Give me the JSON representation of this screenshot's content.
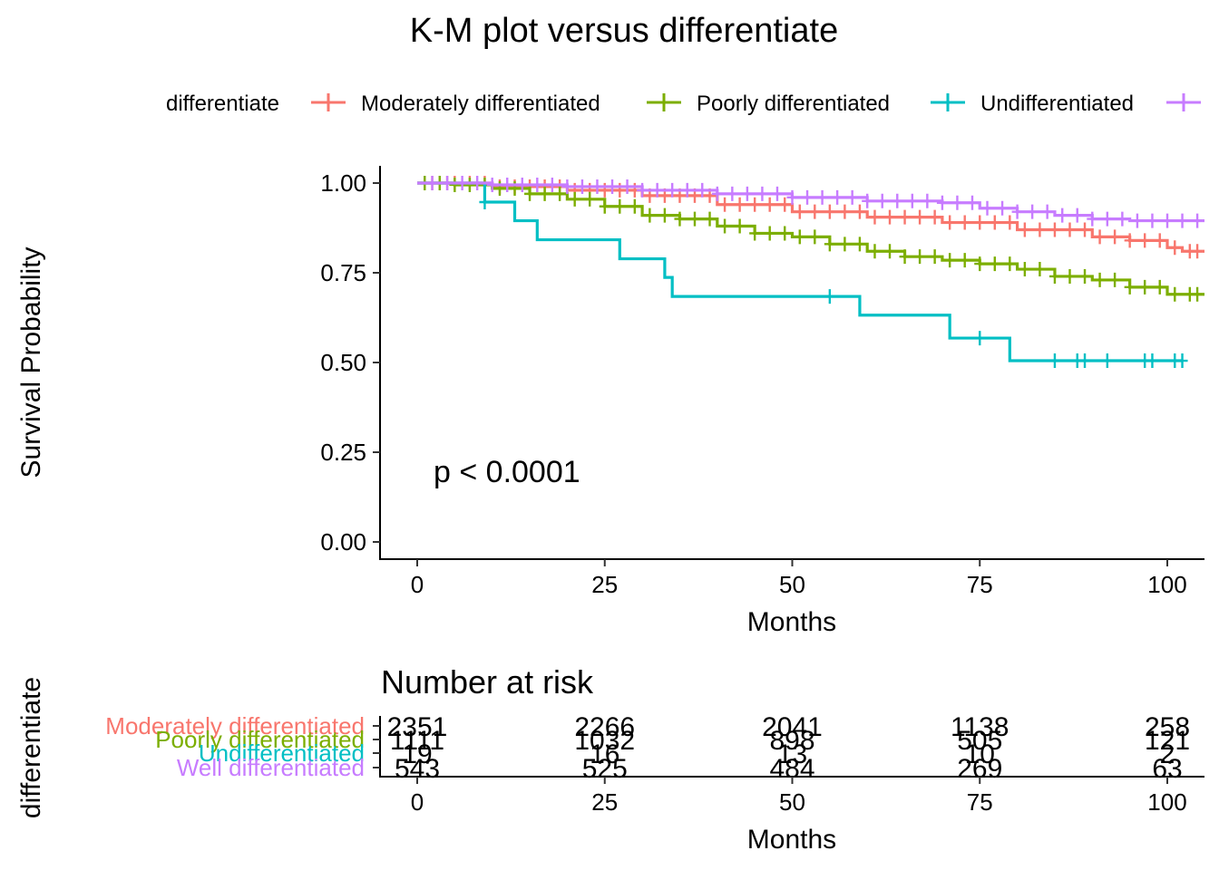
{
  "chart_data": {
    "type": "line",
    "title": "K-M plot versus differentiate",
    "xlabel": "Months",
    "ylabel": "Survival Probability",
    "xlim": [
      0,
      105
    ],
    "ylim": [
      0,
      1.05
    ],
    "x_ticks": [
      "0",
      "25",
      "50",
      "75",
      "100"
    ],
    "y_ticks": [
      "0.00",
      "0.25",
      "0.50",
      "0.75",
      "1.00"
    ],
    "legend": {
      "title": "differentiate",
      "position": "top",
      "entries": [
        "Moderately differentiated",
        "Poorly differentiated",
        "Undifferentiated",
        ""
      ]
    },
    "annotation": "p < 0.0001",
    "grid": false,
    "series": [
      {
        "name": "Moderately differentiated",
        "color": "#F8766D",
        "x": [
          0,
          10,
          20,
          30,
          40,
          50,
          60,
          70,
          80,
          90,
          95,
          100,
          102,
          105
        ],
        "y": [
          1.0,
          0.99,
          0.98,
          0.965,
          0.94,
          0.92,
          0.905,
          0.89,
          0.87,
          0.85,
          0.84,
          0.82,
          0.81,
          0.81
        ],
        "censor_x": [
          1,
          2,
          3,
          4,
          5,
          7,
          9,
          11,
          13,
          15,
          17,
          19,
          21,
          23,
          25,
          27,
          29,
          31,
          33,
          35,
          37,
          39,
          41,
          43,
          45,
          47,
          49,
          51,
          53,
          55,
          57,
          59,
          61,
          63,
          65,
          67,
          69,
          71,
          73,
          75,
          77,
          79,
          81,
          83,
          85,
          87,
          89,
          91,
          93,
          95,
          97,
          99,
          101,
          103,
          104
        ]
      },
      {
        "name": "Poorly differentiated",
        "color": "#7CAE00",
        "x": [
          0,
          5,
          10,
          15,
          20,
          25,
          30,
          35,
          40,
          45,
          50,
          55,
          60,
          65,
          70,
          75,
          80,
          85,
          90,
          95,
          100,
          105
        ],
        "y": [
          1.0,
          0.995,
          0.985,
          0.97,
          0.955,
          0.935,
          0.91,
          0.9,
          0.88,
          0.86,
          0.85,
          0.83,
          0.81,
          0.795,
          0.785,
          0.775,
          0.76,
          0.74,
          0.73,
          0.71,
          0.69,
          0.69
        ],
        "censor_x": [
          1,
          3,
          5,
          7,
          9,
          11,
          13,
          15,
          17,
          19,
          21,
          23,
          25,
          27,
          29,
          31,
          33,
          35,
          37,
          39,
          41,
          43,
          45,
          47,
          49,
          51,
          53,
          55,
          57,
          59,
          61,
          63,
          65,
          67,
          69,
          71,
          73,
          75,
          77,
          79,
          81,
          83,
          85,
          87,
          89,
          91,
          93,
          95,
          97,
          99,
          101,
          103,
          104
        ]
      },
      {
        "name": "Undifferentiated",
        "color": "#00BFC4",
        "x": [
          0,
          9,
          13,
          16,
          27,
          33,
          34,
          59,
          71,
          79,
          102
        ],
        "y": [
          1.0,
          0.947,
          0.895,
          0.842,
          0.789,
          0.737,
          0.684,
          0.632,
          0.568,
          0.505,
          0.505
        ],
        "censor_x": [
          9,
          55,
          75,
          85,
          88,
          89,
          92,
          97,
          98,
          101,
          102
        ]
      },
      {
        "name": "Well differentiated",
        "color": "#C77CFF",
        "x": [
          0,
          10,
          20,
          30,
          40,
          50,
          60,
          70,
          75,
          80,
          85,
          90,
          95,
          100,
          105
        ],
        "y": [
          1.0,
          0.995,
          0.99,
          0.98,
          0.97,
          0.96,
          0.95,
          0.945,
          0.93,
          0.92,
          0.91,
          0.9,
          0.895,
          0.895,
          0.895
        ],
        "censor_x": [
          2,
          4,
          6,
          8,
          10,
          12,
          14,
          16,
          18,
          20,
          22,
          24,
          26,
          28,
          30,
          32,
          34,
          36,
          38,
          40,
          42,
          44,
          46,
          48,
          50,
          52,
          54,
          56,
          58,
          60,
          62,
          64,
          66,
          68,
          70,
          72,
          74,
          76,
          78,
          80,
          82,
          84,
          86,
          88,
          90,
          92,
          94,
          96,
          98,
          100,
          102,
          104
        ]
      }
    ],
    "risk_table": {
      "title": "Number at risk",
      "ylabel": "differentiate",
      "xlabel": "Months",
      "times": [
        "0",
        "25",
        "50",
        "75",
        "100"
      ],
      "rows": [
        {
          "name": "Moderately differentiated",
          "color": "#F8766D",
          "values": [
            "2351",
            "2266",
            "2041",
            "1138",
            "258"
          ]
        },
        {
          "name": "Poorly differentiated",
          "color": "#7CAE00",
          "values": [
            "1111",
            "1032",
            "898",
            "505",
            "121"
          ]
        },
        {
          "name": "Undifferentiated",
          "color": "#00BFC4",
          "values": [
            "19",
            "16",
            "13",
            "10",
            "2"
          ]
        },
        {
          "name": "Well differentiated",
          "color": "#C77CFF",
          "values": [
            "543",
            "525",
            "484",
            "269",
            "63"
          ]
        }
      ]
    }
  }
}
